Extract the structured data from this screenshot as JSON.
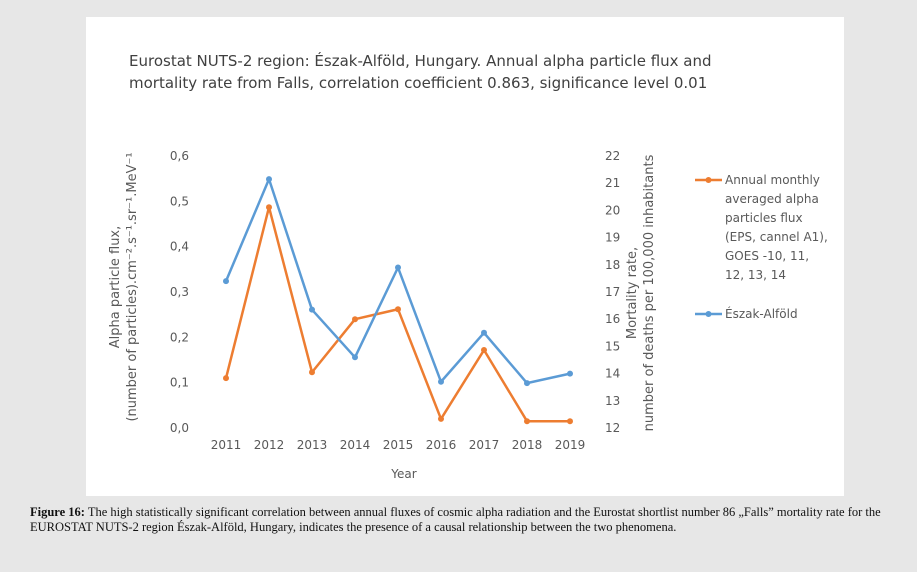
{
  "chart_data": {
    "type": "line",
    "title_line1": "Eurostat NUTS-2 region: Észak-Alföld, Hungary. Annual alpha particle flux and",
    "title_line2": "mortality rate from Falls, correlation coefficient 0.863, significance level 0.01",
    "x": [
      "2011",
      "2012",
      "2013",
      "2014",
      "2015",
      "2016",
      "2017",
      "2018",
      "2019"
    ],
    "xlabel": "Year",
    "ylabel_left_line1": "Alpha particle flux,",
    "ylabel_left_line2": "(number of particles).cm⁻².s⁻¹.sr⁻¹.MeV⁻¹",
    "ylabel_right_line1": "Mortality rate,",
    "ylabel_right_line2": "number of deaths per 100,000 inhabitants",
    "ylim_left": [
      0,
      0.6
    ],
    "ylim_right": [
      12,
      22
    ],
    "yticks_left": [
      "0,0",
      "0,1",
      "0,2",
      "0,3",
      "0,4",
      "0,5",
      "0,6"
    ],
    "yticks_right": [
      "12",
      "13",
      "14",
      "15",
      "16",
      "17",
      "18",
      "19",
      "20",
      "21",
      "22"
    ],
    "series": [
      {
        "name": "Annual monthly averaged alpha particles flux (EPS, cannel A1), GOES -10, 11, 12, 13, 14",
        "legend_lines": [
          "Annual monthly",
          "averaged alpha",
          "particles flux",
          "(EPS, cannel A1),",
          "GOES -10, 11,",
          "12, 13, 14"
        ],
        "axis": "left",
        "color": "#ed7d31",
        "values": [
          0.11,
          0.487,
          0.123,
          0.24,
          0.262,
          0.02,
          0.172,
          0.015,
          0.015
        ]
      },
      {
        "name": "Észak-Alföld",
        "legend_lines": [
          "Észak-Alföld"
        ],
        "axis": "right",
        "color": "#5b9bd5",
        "values": [
          17.4,
          21.15,
          16.35,
          14.6,
          17.9,
          13.7,
          15.5,
          13.65,
          14.0
        ]
      }
    ],
    "grid": false,
    "legend_position": "right"
  },
  "caption": {
    "label": "Figure 16:",
    "text": " The high statistically significant correlation between annual fluxes of cosmic alpha radiation and the Eurostat shortlist number 86 „Falls” mortality rate for the EUROSTAT NUTS-2 region Észak-Alföld, Hungary, indicates the presence of a causal relationship between the two phenomena."
  }
}
